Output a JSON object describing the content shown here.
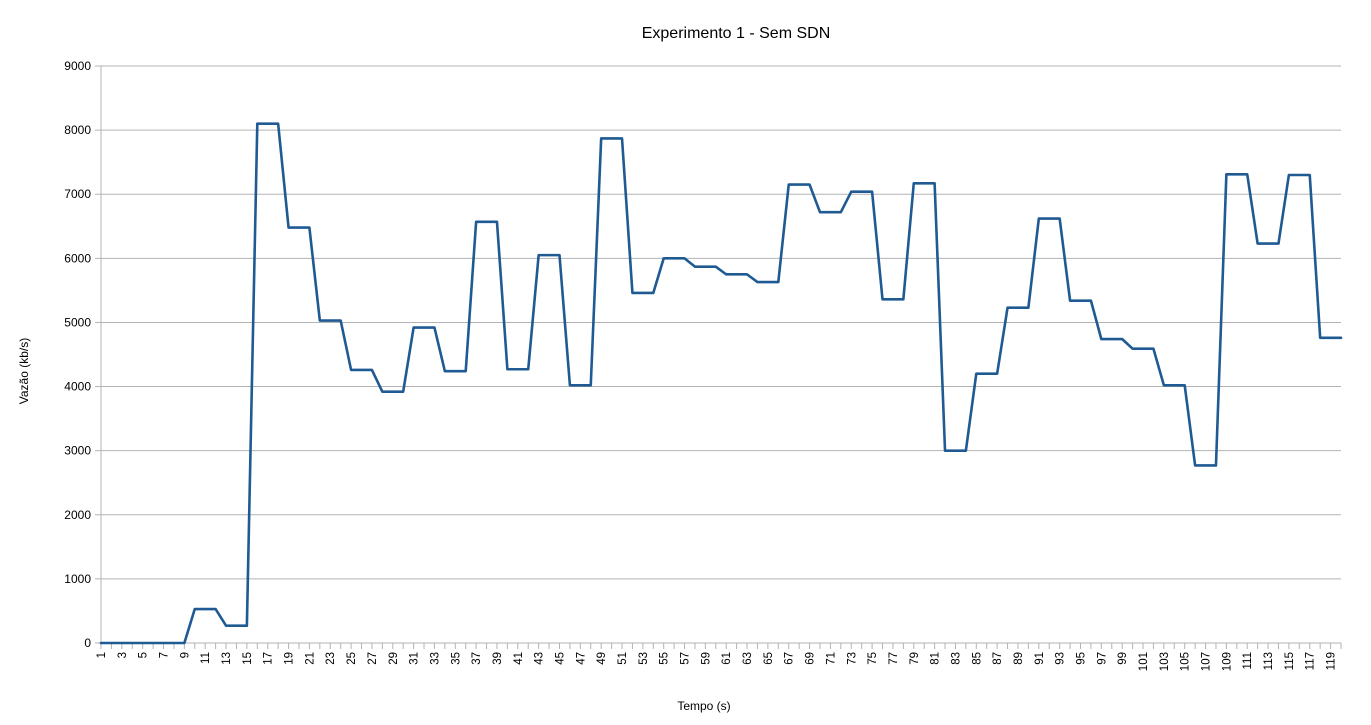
{
  "chart_data": {
    "type": "line",
    "title": "Experimento 1 - Sem SDN",
    "xlabel": "Tempo (s)",
    "ylabel": "Vazão (kb/s)",
    "ylim": [
      0,
      9000
    ],
    "yticks": [
      0,
      1000,
      2000,
      3000,
      4000,
      5000,
      6000,
      7000,
      8000,
      9000
    ],
    "xlim": [
      1,
      120
    ],
    "xtick_step": 2,
    "grid": true,
    "legend": "none",
    "colors": {
      "line": "#1f5a93",
      "grid": "#b3b3b3",
      "axis": "#b3b3b3"
    },
    "series": [
      {
        "values": [
          0,
          0,
          0,
          0,
          0,
          0,
          0,
          0,
          0,
          530,
          530,
          530,
          270,
          270,
          270,
          8100,
          8100,
          8100,
          6480,
          6480,
          6480,
          5030,
          5030,
          5030,
          4260,
          4260,
          4260,
          3920,
          3920,
          3920,
          4920,
          4920,
          4920,
          4240,
          4240,
          4240,
          6570,
          6570,
          6570,
          4270,
          4270,
          4270,
          6050,
          6050,
          6050,
          4020,
          4020,
          4020,
          7870,
          7870,
          7870,
          5460,
          5460,
          5460,
          6000,
          6000,
          6000,
          5870,
          5870,
          5870,
          5750,
          5750,
          5750,
          5630,
          5630,
          5630,
          7150,
          7150,
          7150,
          6720,
          6720,
          6720,
          7040,
          7040,
          7040,
          5360,
          5360,
          5360,
          7170,
          7170,
          7170,
          3000,
          3000,
          3000,
          4200,
          4200,
          4200,
          5230,
          5230,
          5230,
          6620,
          6620,
          6620,
          5340,
          5340,
          5340,
          4740,
          4740,
          4740,
          4590,
          4590,
          4590,
          4020,
          4020,
          4020,
          2770,
          2770,
          2770,
          7310,
          7310,
          7310,
          6230,
          6230,
          6230,
          7300,
          7300,
          7300,
          4760,
          4760,
          4760
        ]
      }
    ]
  }
}
